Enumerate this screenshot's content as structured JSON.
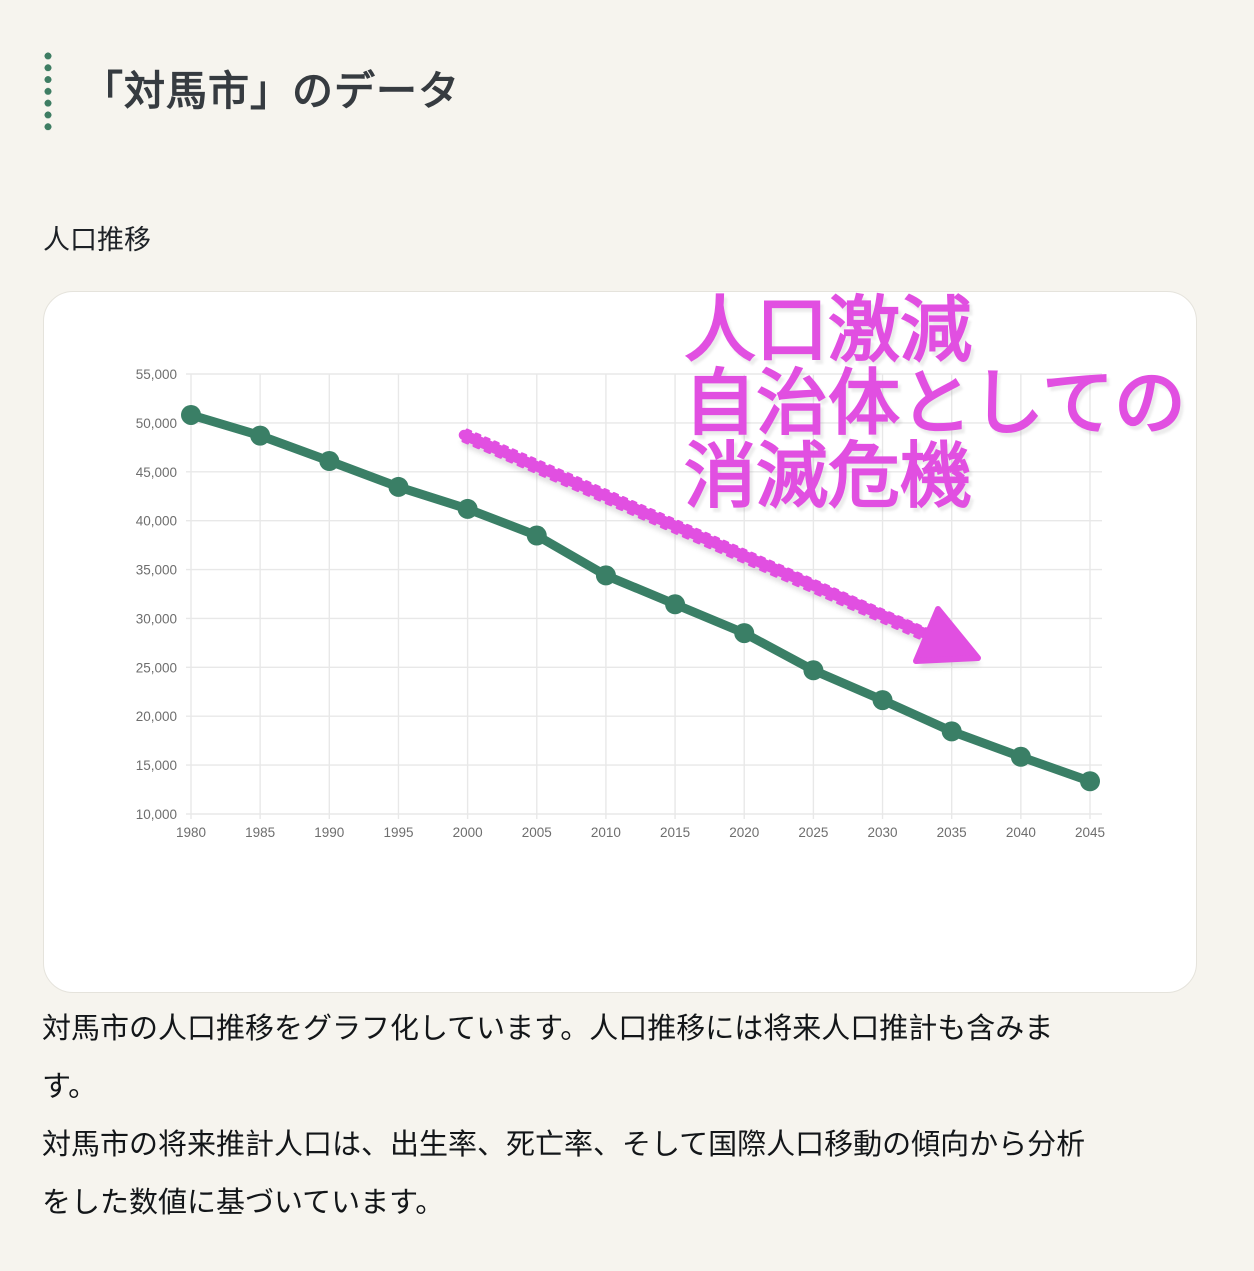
{
  "page": {
    "title": "「対馬市」のデータ",
    "section_label": "人口推移",
    "description": [
      "対馬市の人口推移をグラフ化しています。人口推移には将来人口推計も含みま\nす。",
      "対馬市の将来推計人口は、出生率、死亡率、そして国際人口移動の傾向から分析\nをした数値に基づいています。"
    ]
  },
  "annotation": {
    "lines": [
      "人口激減",
      "自治体としての",
      "消滅危機"
    ],
    "color": "#e14fe1"
  },
  "colors": {
    "background": "#f6f4ee",
    "accent_green": "#3e7d63",
    "line_green": "#3a7f66",
    "annotation_pink": "#e14fe1",
    "grid": "#e8e8e8",
    "axis_text": "#6e6e6e"
  },
  "chart_data": {
    "type": "line",
    "title": "人口推移",
    "x": [
      1980,
      1985,
      1990,
      1995,
      2000,
      2005,
      2010,
      2015,
      2020,
      2025,
      2030,
      2035,
      2040,
      2045
    ],
    "series": [
      {
        "name": "人口",
        "values": [
          50810,
          48700,
          46100,
          43450,
          41200,
          38480,
          34400,
          31450,
          28500,
          24700,
          21650,
          18450,
          15850,
          13350
        ]
      }
    ],
    "ylim": [
      10000,
      55000
    ],
    "ytick_step": 5000,
    "xtick_labels": [
      "1980",
      "1985",
      "1990",
      "1995",
      "2000",
      "2005",
      "2010",
      "2015",
      "2020",
      "2025",
      "2030",
      "2035",
      "2040",
      "2045"
    ],
    "grid": true,
    "legend": "none",
    "line_color": "#3a7f66"
  }
}
